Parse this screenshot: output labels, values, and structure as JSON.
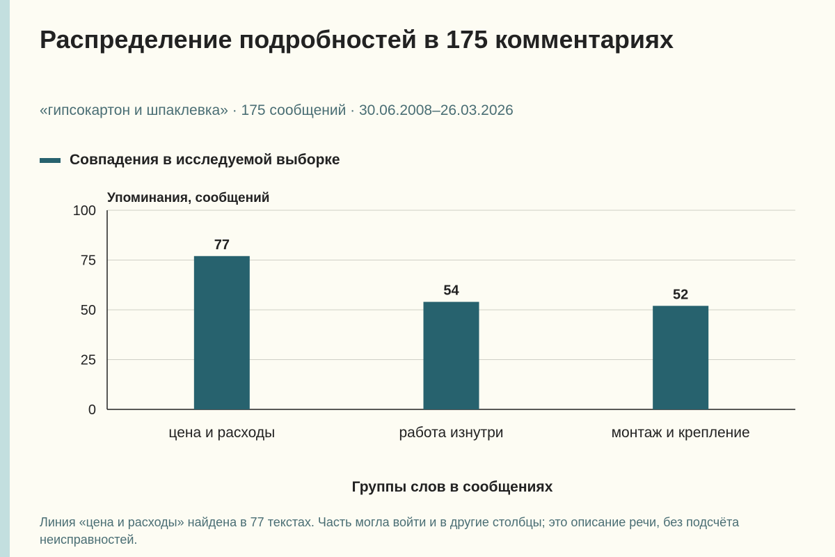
{
  "chart_data": {
    "type": "bar",
    "title": "Распределение подробностей в 175 комментариях",
    "subtitle": "«гипсокартон и шпаклевка» · 175 сообщений · 30.06.2008–26.03.2026",
    "xlabel": "Группы слов в сообщениях",
    "ylabel": "Упоминания, сообщений",
    "categories": [
      "цена и расходы",
      "работа изнутри",
      "монтаж и крепление"
    ],
    "series": [
      {
        "name": "Совпадения в исследуемой выборке",
        "values": [
          77,
          54,
          52
        ],
        "color": "#27626e"
      }
    ],
    "ylim": [
      0,
      100
    ],
    "yticks": [
      0,
      25,
      50,
      75,
      100
    ],
    "grid": true,
    "legend": "top-left",
    "data_labels": true
  },
  "note": "Линия «цена и расходы» найдена в 77 текстах. Часть могла войти и в другие столбцы; это описание речи, без подсчёта неисправностей."
}
